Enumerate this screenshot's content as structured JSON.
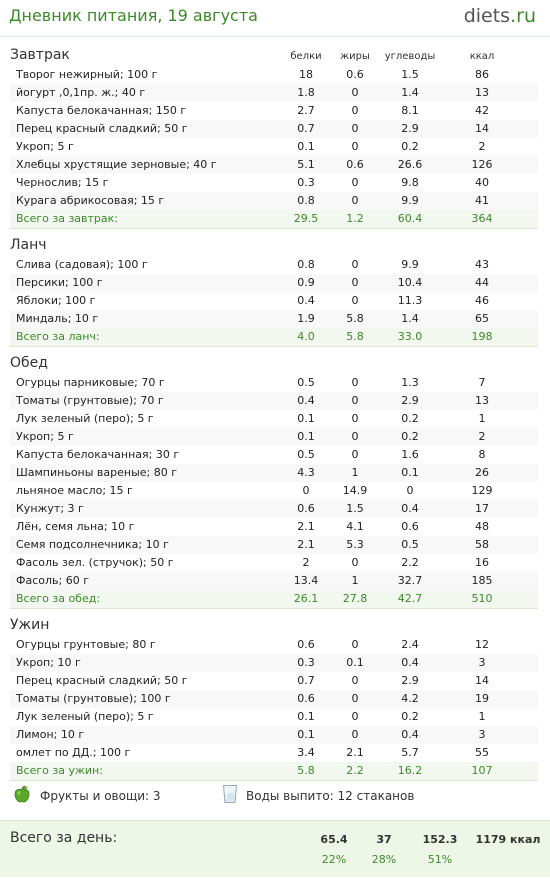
{
  "header": {
    "title": "Дневник питания, 19 августа",
    "logo_main": "diets",
    "logo_dot": ".",
    "logo_tld": "ru"
  },
  "columns": {
    "protein": "белки",
    "fat": "жиры",
    "carbs": "углеводы",
    "kcal": "ккал"
  },
  "sections": [
    {
      "title": "Завтрак",
      "rows": [
        [
          "Творог нежирный; 100 г",
          "18",
          "0.6",
          "1.5",
          "86"
        ],
        [
          "йогурт ,0,1пр. ж.; 40 г",
          "1.8",
          "0",
          "1.4",
          "13"
        ],
        [
          "Капуста белокачанная; 150 г",
          "2.7",
          "0",
          "8.1",
          "42"
        ],
        [
          "Перец красный сладкий; 50 г",
          "0.7",
          "0",
          "2.9",
          "14"
        ],
        [
          "Укроп; 5 г",
          "0.1",
          "0",
          "0.2",
          "2"
        ],
        [
          "Хлебцы хрустящие зерновые; 40 г",
          "5.1",
          "0.6",
          "26.6",
          "126"
        ],
        [
          "Чернослив; 15 г",
          "0.3",
          "0",
          "9.8",
          "40"
        ],
        [
          "Курага абрикосовая; 15 г",
          "0.8",
          "0",
          "9.9",
          "41"
        ]
      ],
      "total": [
        "Всего за завтрак:",
        "29.5",
        "1.2",
        "60.4",
        "364"
      ]
    },
    {
      "title": "Ланч",
      "rows": [
        [
          "Слива (садовая); 100 г",
          "0.8",
          "0",
          "9.9",
          "43"
        ],
        [
          "Персики; 100 г",
          "0.9",
          "0",
          "10.4",
          "44"
        ],
        [
          "Яблоки; 100 г",
          "0.4",
          "0",
          "11.3",
          "46"
        ],
        [
          "Миндаль; 10 г",
          "1.9",
          "5.8",
          "1.4",
          "65"
        ]
      ],
      "total": [
        "Всего за ланч:",
        "4.0",
        "5.8",
        "33.0",
        "198"
      ]
    },
    {
      "title": "Обед",
      "rows": [
        [
          "Огурцы парниковые; 70 г",
          "0.5",
          "0",
          "1.3",
          "7"
        ],
        [
          "Томаты (грунтовые); 70 г",
          "0.4",
          "0",
          "2.9",
          "13"
        ],
        [
          "Лук зеленый (перо); 5 г",
          "0.1",
          "0",
          "0.2",
          "1"
        ],
        [
          "Укроп; 5 г",
          "0.1",
          "0",
          "0.2",
          "2"
        ],
        [
          "Капуста белокачанная; 30 г",
          "0.5",
          "0",
          "1.6",
          "8"
        ],
        [
          "Шампиньоны вареные; 80 г",
          "4.3",
          "1",
          "0.1",
          "26"
        ],
        [
          "льняное масло; 15 г",
          "0",
          "14.9",
          "0",
          "129"
        ],
        [
          "Кунжут; 3 г",
          "0.6",
          "1.5",
          "0.4",
          "17"
        ],
        [
          "Лён, семя льна; 10 г",
          "2.1",
          "4.1",
          "0.6",
          "48"
        ],
        [
          "Семя подсолнечника; 10 г",
          "2.1",
          "5.3",
          "0.5",
          "58"
        ],
        [
          "Фасоль зел. (стручок); 50 г",
          "2",
          "0",
          "2.2",
          "16"
        ],
        [
          "Фасоль; 60 г",
          "13.4",
          "1",
          "32.7",
          "185"
        ]
      ],
      "total": [
        "Всего за обед:",
        "26.1",
        "27.8",
        "42.7",
        "510"
      ]
    },
    {
      "title": "Ужин",
      "rows": [
        [
          "Огурцы грунтовые; 80 г",
          "0.6",
          "0",
          "2.4",
          "12"
        ],
        [
          "Укроп; 10 г",
          "0.3",
          "0.1",
          "0.4",
          "3"
        ],
        [
          "Перец красный сладкий; 50 г",
          "0.7",
          "0",
          "2.9",
          "14"
        ],
        [
          "Томаты (грунтовые); 100 г",
          "0.6",
          "0",
          "4.2",
          "19"
        ],
        [
          "Лук зеленый (перо); 5 г",
          "0.1",
          "0",
          "0.2",
          "1"
        ],
        [
          "Лимон; 10 г",
          "0.1",
          "0",
          "0.4",
          "3"
        ],
        [
          "омлет по ДД.; 100 г",
          "3.4",
          "2.1",
          "5.7",
          "55"
        ]
      ],
      "total": [
        "Всего за ужин:",
        "5.8",
        "2.2",
        "16.2",
        "107"
      ]
    }
  ],
  "extras": {
    "fruits": "Фрукты и овощи: 3",
    "water": "Воды выпито: 12 стаканов"
  },
  "day_total": {
    "label": "Всего за день:",
    "protein": "65.4",
    "fat": "37",
    "carbs": "152.3",
    "kcal": "1179 ккал",
    "protein_pct": "22%",
    "fat_pct": "28%",
    "carbs_pct": "51%"
  },
  "colors": {
    "accent": "#3d8a2a",
    "total_bg": "#f2f8ef",
    "day_bg": "#eef6e8"
  },
  "icons": {
    "fruits": "apple-icon",
    "water": "water-glass-icon"
  }
}
